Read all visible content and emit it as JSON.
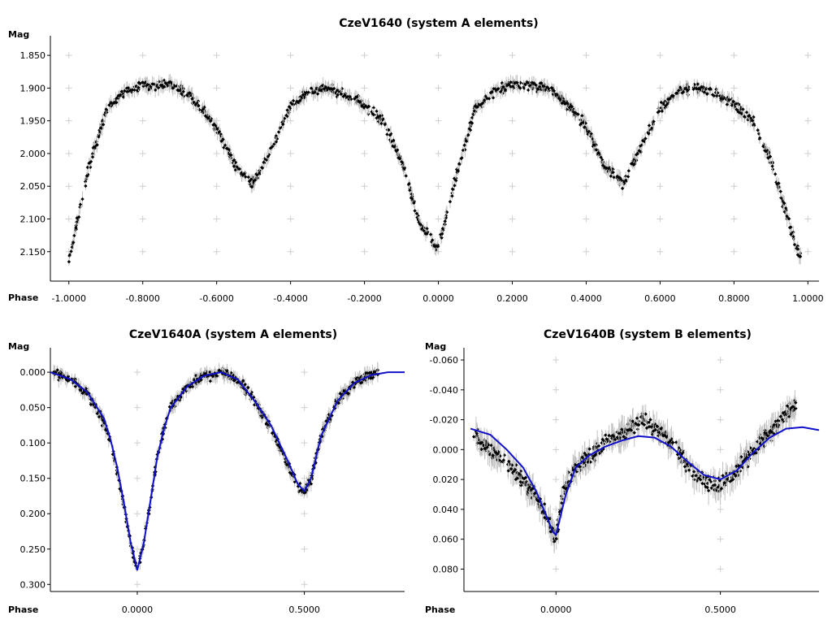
{
  "chart_data": [
    {
      "type": "scatter",
      "title": "CzeV1640 (system A elements)",
      "xlabel": "Phase",
      "ylabel": "Mag",
      "xlim": [
        -1.05,
        1.03
      ],
      "ylim": [
        1.825,
        2.195
      ],
      "y_inverted": true,
      "xticks": [
        "-1.0000",
        "-0.8000",
        "-0.6000",
        "-0.4000",
        "-0.2000",
        "0.0000",
        "0.2000",
        "0.4000",
        "0.6000",
        "0.8000",
        "1.0000"
      ],
      "xtick_values": [
        -1.0,
        -0.8,
        -0.6,
        -0.4,
        -0.2,
        0.0,
        0.2,
        0.4,
        0.6,
        0.8,
        1.0
      ],
      "yticks": [
        "1.850",
        "1.900",
        "1.950",
        "2.000",
        "2.050",
        "2.100",
        "2.150"
      ],
      "ytick_values": [
        1.85,
        1.9,
        1.95,
        2.0,
        2.05,
        2.1,
        2.15
      ],
      "grid": "crosses",
      "series": [
        {
          "marker": "diamond",
          "color": "#000000",
          "error_bar_color": "#c2c2c2",
          "x": [
            -1.0,
            -0.95,
            -0.9,
            -0.85,
            -0.8,
            -0.75,
            -0.7,
            -0.65,
            -0.6,
            -0.55,
            -0.5,
            -0.45,
            -0.4,
            -0.35,
            -0.3,
            -0.25,
            -0.2,
            -0.15,
            -0.1,
            -0.05,
            0.0,
            0.05,
            0.1,
            0.15,
            0.2,
            0.25,
            0.3,
            0.35,
            0.4,
            0.45,
            0.5,
            0.55,
            0.6,
            0.65,
            0.7,
            0.75,
            0.8,
            0.85,
            0.9,
            0.95,
            0.98
          ],
          "y": [
            2.165,
            2.03,
            1.935,
            1.905,
            1.895,
            1.895,
            1.9,
            1.925,
            1.96,
            2.02,
            2.045,
            1.99,
            1.93,
            1.905,
            1.9,
            1.91,
            1.925,
            1.95,
            2.01,
            2.11,
            2.145,
            2.03,
            1.93,
            1.905,
            1.895,
            1.895,
            1.9,
            1.925,
            1.96,
            2.02,
            2.045,
            1.99,
            1.93,
            1.905,
            1.9,
            1.91,
            1.925,
            1.95,
            2.01,
            2.11,
            2.16
          ]
        }
      ]
    },
    {
      "type": "scatter",
      "title": "CzeV1640A (system A elements)",
      "xlabel": "Phase",
      "ylabel": "Mag",
      "xlim": [
        -0.26,
        0.8
      ],
      "ylim": [
        -0.03,
        0.31
      ],
      "y_inverted": true,
      "xticks": [
        "0.0000",
        "0.5000"
      ],
      "xtick_values": [
        0.0,
        0.5
      ],
      "yticks": [
        "0.000",
        "0.050",
        "0.100",
        "0.150",
        "0.200",
        "0.250",
        "0.300"
      ],
      "ytick_values": [
        0.0,
        0.05,
        0.1,
        0.15,
        0.2,
        0.25,
        0.3
      ],
      "grid": "crosses",
      "series": [
        {
          "marker": "diamond",
          "color": "#000000",
          "error_bar_color": "#c2c2c2",
          "x": [
            -0.25,
            -0.2,
            -0.15,
            -0.1,
            -0.08,
            -0.06,
            -0.04,
            -0.02,
            0.0,
            0.02,
            0.04,
            0.06,
            0.08,
            0.1,
            0.15,
            0.2,
            0.25,
            0.3,
            0.35,
            0.4,
            0.45,
            0.48,
            0.5,
            0.52,
            0.55,
            0.6,
            0.65,
            0.72
          ],
          "y": [
            0.002,
            0.01,
            0.03,
            0.07,
            0.1,
            0.14,
            0.19,
            0.24,
            0.28,
            0.24,
            0.18,
            0.12,
            0.08,
            0.05,
            0.02,
            0.005,
            0.0,
            0.01,
            0.04,
            0.08,
            0.13,
            0.16,
            0.17,
            0.15,
            0.09,
            0.04,
            0.015,
            0.0
          ]
        },
        {
          "type": "line",
          "role": "fit",
          "color": "#1010c8",
          "x": [
            -0.26,
            -0.2,
            -0.15,
            -0.1,
            -0.08,
            -0.06,
            -0.04,
            -0.02,
            0.0,
            0.02,
            0.04,
            0.06,
            0.08,
            0.1,
            0.15,
            0.2,
            0.25,
            0.3,
            0.35,
            0.4,
            0.45,
            0.48,
            0.5,
            0.52,
            0.55,
            0.6,
            0.65,
            0.7,
            0.75,
            0.8
          ],
          "y": [
            0.0,
            0.01,
            0.028,
            0.065,
            0.095,
            0.135,
            0.185,
            0.24,
            0.28,
            0.24,
            0.18,
            0.12,
            0.08,
            0.05,
            0.02,
            0.005,
            0.0,
            0.01,
            0.04,
            0.075,
            0.125,
            0.158,
            0.168,
            0.15,
            0.09,
            0.04,
            0.015,
            0.004,
            0.0,
            0.0
          ]
        }
      ]
    },
    {
      "type": "scatter",
      "title": "CzeV1640B (system B elements)",
      "xlabel": "Phase",
      "ylabel": "Mag",
      "xlim": [
        -0.28,
        0.8
      ],
      "ylim": [
        -0.066,
        0.095
      ],
      "y_inverted": true,
      "xticks": [
        "0.0000",
        "0.5000"
      ],
      "xtick_values": [
        0.0,
        0.5
      ],
      "yticks": [
        "-0.060",
        "-0.040",
        "-0.020",
        "0.000",
        "0.020",
        "0.040",
        "0.060",
        "0.080"
      ],
      "ytick_values": [
        -0.06,
        -0.04,
        -0.02,
        0.0,
        0.02,
        0.04,
        0.06,
        0.08
      ],
      "grid": "crosses",
      "series": [
        {
          "marker": "diamond",
          "color": "#000000",
          "error_bar_color": "#c2c2c2",
          "x": [
            -0.25,
            -0.2,
            -0.15,
            -0.1,
            -0.05,
            -0.02,
            0.0,
            0.02,
            0.05,
            0.1,
            0.15,
            0.2,
            0.25,
            0.3,
            0.35,
            0.4,
            0.45,
            0.5,
            0.55,
            0.58,
            0.73
          ],
          "y": [
            -0.01,
            0.0,
            0.01,
            0.02,
            0.035,
            0.05,
            0.06,
            0.03,
            0.015,
            0.005,
            -0.005,
            -0.01,
            -0.02,
            -0.015,
            -0.005,
            0.01,
            0.02,
            0.025,
            0.015,
            0.005,
            -0.03
          ]
        },
        {
          "type": "line",
          "role": "fit",
          "color": "#1010c8",
          "x": [
            -0.26,
            -0.2,
            -0.15,
            -0.1,
            -0.06,
            -0.03,
            -0.01,
            0.0,
            0.01,
            0.03,
            0.06,
            0.1,
            0.15,
            0.2,
            0.25,
            0.3,
            0.35,
            0.4,
            0.45,
            0.5,
            0.55,
            0.6,
            0.65,
            0.7,
            0.75,
            0.8
          ],
          "y": [
            -0.014,
            -0.01,
            0.0,
            0.012,
            0.028,
            0.044,
            0.055,
            0.057,
            0.048,
            0.03,
            0.012,
            0.004,
            -0.002,
            -0.006,
            -0.009,
            -0.008,
            -0.002,
            0.008,
            0.017,
            0.02,
            0.014,
            0.002,
            -0.008,
            -0.014,
            -0.015,
            -0.013
          ]
        }
      ]
    }
  ]
}
